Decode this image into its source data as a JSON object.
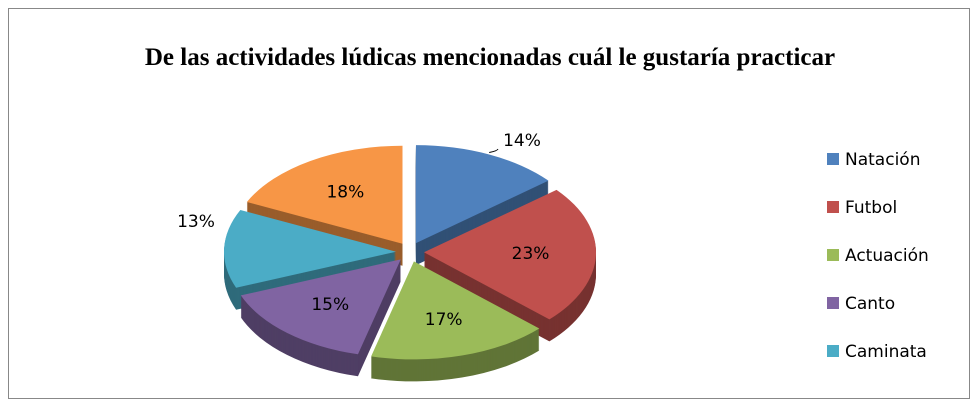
{
  "chart_data": {
    "type": "pie",
    "title": "De las actividades lúdicas mencionadas cuál le gustaría practicar",
    "categories": [
      "Natación",
      "Futbol",
      "Actuación",
      "Canto",
      "Caminata",
      null
    ],
    "values": [
      14,
      23,
      17,
      15,
      13,
      18
    ],
    "value_labels": [
      "14%",
      "23%",
      "17%",
      "15%",
      "13%",
      "18%"
    ],
    "colors": [
      "#4f81bd",
      "#c0504d",
      "#9bbb59",
      "#8064a2",
      "#4bacc6",
      "#f79646"
    ],
    "legend": "right"
  }
}
